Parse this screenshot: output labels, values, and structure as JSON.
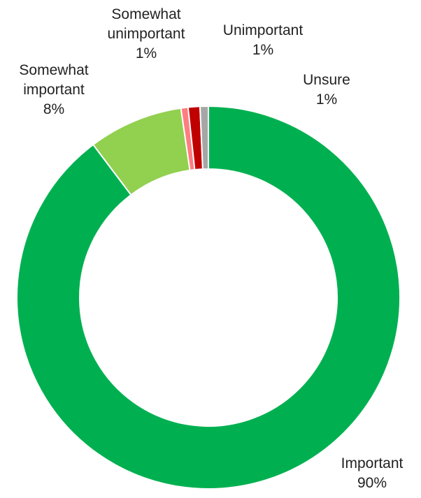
{
  "chart_data": {
    "type": "pie",
    "variant": "donut",
    "title": "",
    "legend": "none",
    "slices": [
      {
        "name": "Important",
        "value": 90,
        "label": "90%",
        "color": "#00B050"
      },
      {
        "name": "Somewhat important",
        "value": 8,
        "label": "8%",
        "color": "#92D050"
      },
      {
        "name": "Somewhat unimportant",
        "value": 0.6,
        "label": "1%",
        "color": "#FF7C80"
      },
      {
        "name": "Unimportant",
        "value": 1,
        "label": "1%",
        "color": "#C00000"
      },
      {
        "name": "Unsure",
        "value": 0.7,
        "label": "1%",
        "color": "#A6A6A6"
      }
    ]
  }
}
